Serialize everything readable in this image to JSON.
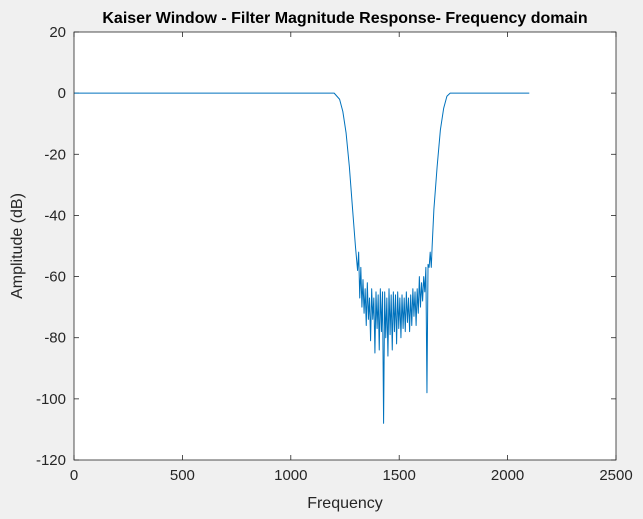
{
  "chart_data": {
    "type": "line",
    "title": "Kaiser Window - Filter Magnitude Response- Frequency domain",
    "xlabel": "Frequency",
    "ylabel": "Amplitude (dB)",
    "xlim": [
      0,
      2500
    ],
    "ylim": [
      -120,
      20
    ],
    "x_ticks": [
      0,
      500,
      1000,
      1500,
      2000,
      2500
    ],
    "y_ticks": [
      -120,
      -100,
      -80,
      -60,
      -40,
      -20,
      0,
      20
    ],
    "x_tick_labels": [
      "0",
      "500",
      "1000",
      "1500",
      "2000",
      "2500"
    ],
    "y_tick_labels": [
      "-120",
      "-100",
      "-80",
      "-60",
      "-40",
      "-20",
      "0",
      "20"
    ],
    "grid": false,
    "series": [
      {
        "color": "#0072bd",
        "x": [
          0,
          1200,
          1225,
          1240,
          1255,
          1270,
          1285,
          1298,
          1308,
          1313,
          1318,
          1323,
          1328,
          1333,
          1338,
          1343,
          1348,
          1353,
          1358,
          1363,
          1368,
          1373,
          1378,
          1383,
          1388,
          1393,
          1398,
          1403,
          1408,
          1413,
          1418,
          1423,
          1428,
          1433,
          1438,
          1443,
          1448,
          1453,
          1458,
          1463,
          1468,
          1473,
          1478,
          1483,
          1488,
          1493,
          1498,
          1503,
          1508,
          1513,
          1518,
          1523,
          1528,
          1533,
          1538,
          1543,
          1548,
          1553,
          1558,
          1563,
          1568,
          1573,
          1578,
          1583,
          1588,
          1593,
          1598,
          1603,
          1608,
          1613,
          1618,
          1623,
          1628,
          1633,
          1638,
          1643,
          1648,
          1652,
          1660,
          1675,
          1690,
          1705,
          1720,
          1735,
          1750,
          2100
        ],
        "y": [
          0,
          0,
          -2,
          -6,
          -13,
          -24,
          -38,
          -50,
          -58,
          -52,
          -67,
          -57,
          -70,
          -61,
          -72,
          -64,
          -76,
          -62,
          -74,
          -67,
          -81,
          -64,
          -74,
          -67,
          -85,
          -65,
          -77,
          -66,
          -84,
          -64,
          -78,
          -65,
          -108,
          -65,
          -80,
          -67,
          -86,
          -64,
          -79,
          -66,
          -84,
          -65,
          -78,
          -66,
          -82,
          -65,
          -77,
          -67,
          -80,
          -66,
          -77,
          -67,
          -78,
          -65,
          -75,
          -67,
          -78,
          -66,
          -76,
          -64,
          -73,
          -65,
          -76,
          -64,
          -72,
          -60,
          -70,
          -62,
          -68,
          -60,
          -65,
          -57,
          -98,
          -56,
          -57,
          -52,
          -57,
          -50,
          -38,
          -24,
          -12,
          -5,
          -1,
          0,
          0,
          0
        ]
      }
    ]
  }
}
